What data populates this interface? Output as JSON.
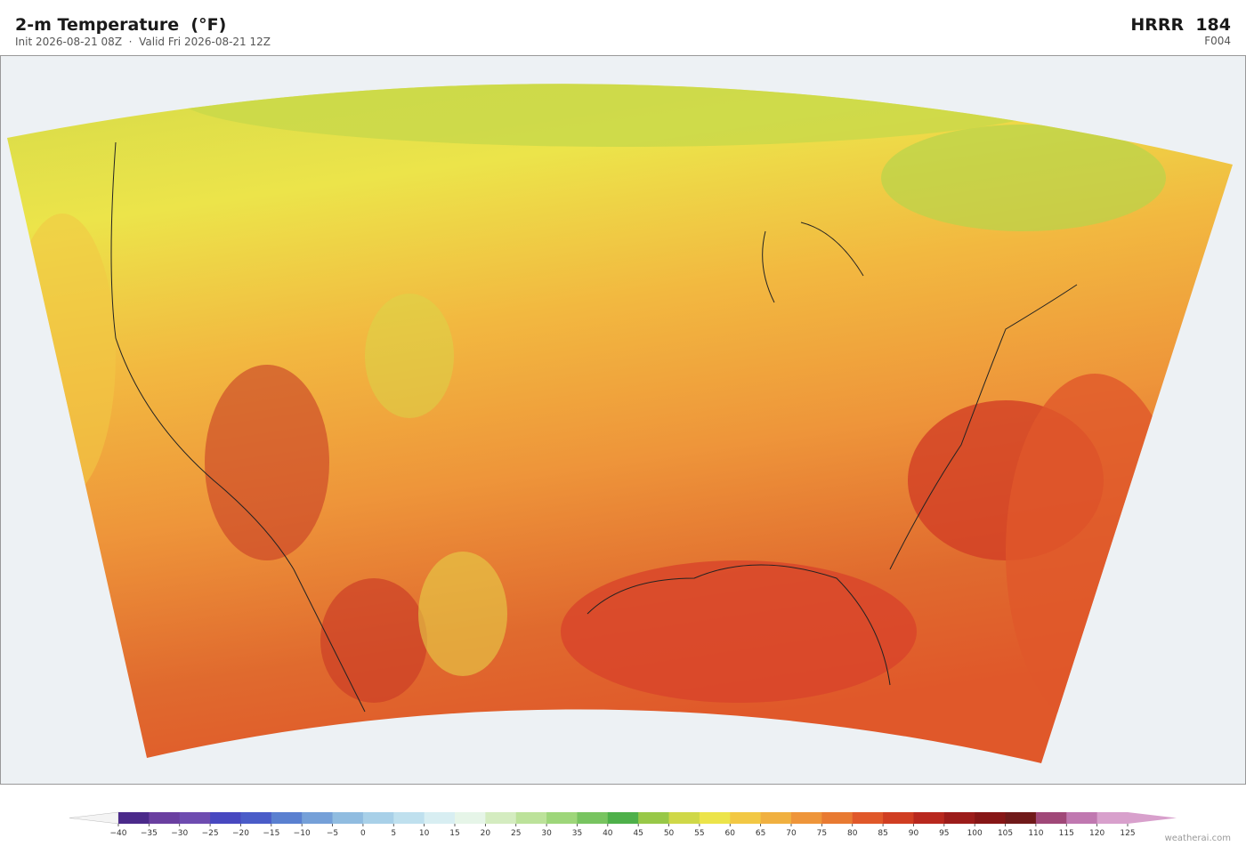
{
  "header": {
    "title": "2-m Temperature  (°F)",
    "subtitle": "Init 2026-08-21 08Z  ·  Valid Fri 2026-08-21 12Z",
    "model": "HRRR  184",
    "forecast_hour": "F004"
  },
  "colorbar": {
    "ticks": [
      {
        "value": -40,
        "label": "−40"
      },
      {
        "value": -35,
        "label": "−35"
      },
      {
        "value": -30,
        "label": "−30"
      },
      {
        "value": -25,
        "label": "−25"
      },
      {
        "value": -20,
        "label": "−20"
      },
      {
        "value": -15,
        "label": "−15"
      },
      {
        "value": -10,
        "label": "−10"
      },
      {
        "value": -5,
        "label": "−5"
      },
      0,
      5,
      10,
      15,
      20,
      25,
      30,
      35,
      40,
      45,
      50,
      55,
      60,
      65,
      70,
      75,
      80,
      85,
      90,
      95,
      100,
      105,
      110,
      115,
      120,
      125
    ],
    "colors": [
      "#4b2a8a",
      "#6a3fa0",
      "#6e4cb0",
      "#4848c0",
      "#4a5cc8",
      "#5a80d0",
      "#75a0d8",
      "#90bce0",
      "#a8d0e8",
      "#bfe0ee",
      "#d8eef2",
      "#e6f5e8",
      "#d4ecc0",
      "#bce29a",
      "#9ed67a",
      "#78c460",
      "#4eb04a",
      "#98c848",
      "#cfd848",
      "#ece44a",
      "#f2c844",
      "#f0b040",
      "#ee953a",
      "#e87a32",
      "#e0582a",
      "#d03e22",
      "#b8281e",
      "#9c1c1a",
      "#861616",
      "#701a1a",
      "#a04878",
      "#c078b0",
      "#d8a0cc"
    ],
    "under_color": "#f4f4f4",
    "over_color": "#d8a0cc"
  },
  "attribution": "weatherai.com"
}
